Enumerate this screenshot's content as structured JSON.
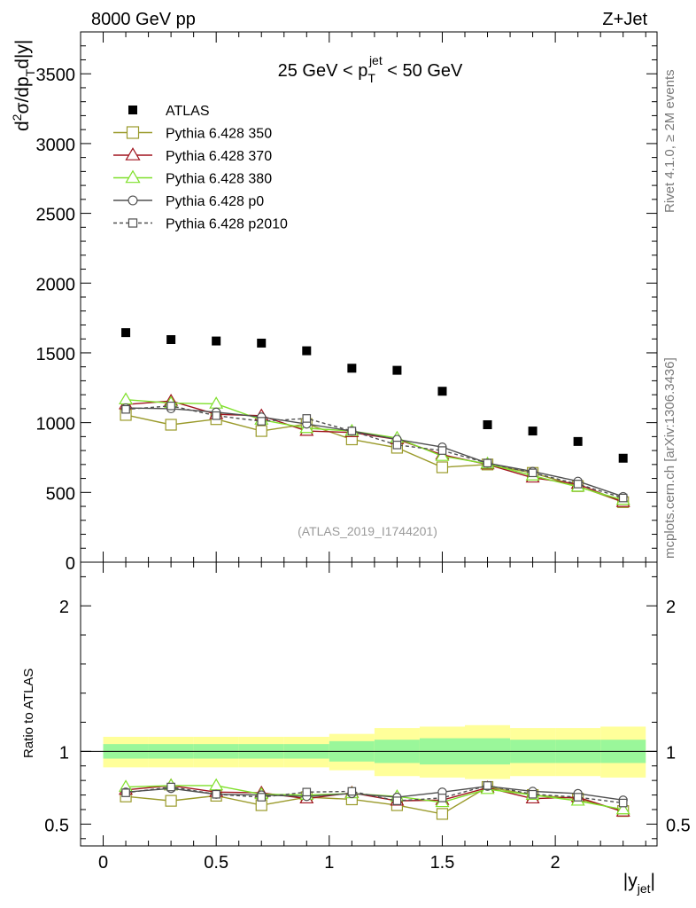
{
  "header": {
    "left": "8000 GeV pp",
    "right": "Z+Jet"
  },
  "side_labels": {
    "rivet": "Rivet 4.1.0, ≥ 2M events",
    "mcplots": "mcplots.cern.ch [arXiv:1306.3436]"
  },
  "chart_data": [
    {
      "panel": "main",
      "type": "scatter",
      "title_parts": {
        "prefix": "25 GeV < p",
        "sub": "T",
        "sup": "jet",
        "suffix": " < 50 GeV"
      },
      "ylabel": "d²σ/dp_T d|y|",
      "ylabel_parts": {
        "d": "d",
        "two": "2",
        "rest": "σ/dp",
        "sub": "T",
        "end": "d|y|"
      },
      "xlabel_parts": {
        "main": "|y",
        "sub": "jet",
        "end": "|"
      },
      "watermark": "(ATLAS_2019_I1744201)",
      "xlim": [
        -0.1,
        2.45
      ],
      "ylim": [
        0,
        3800
      ],
      "x_ticks": [
        "0",
        "0.5",
        "1",
        "1.5",
        "2"
      ],
      "y_ticks": [
        "0",
        "500",
        "1000",
        "1500",
        "2000",
        "2500",
        "3000",
        "3500"
      ],
      "x": [
        0.1,
        0.3,
        0.5,
        0.7,
        0.9,
        1.1,
        1.3,
        1.5,
        1.7,
        1.9,
        2.1,
        2.3
      ],
      "series": [
        {
          "name": "ATLAS",
          "color": "#000000",
          "marker": "filled-square",
          "line": "none",
          "values": [
            1645,
            1595,
            1585,
            1570,
            1515,
            1390,
            1375,
            1225,
            985,
            940,
            865,
            745
          ]
        },
        {
          "name": "Pythia 6.428 350",
          "color": "#9a9a2a",
          "marker": "open-square",
          "line": "solid",
          "values": [
            1055,
            985,
            1025,
            940,
            990,
            880,
            820,
            680,
            700,
            640,
            545,
            430
          ]
        },
        {
          "name": "Pythia 6.428 370",
          "color": "#a0141e",
          "marker": "open-triangle",
          "line": "solid",
          "values": [
            1130,
            1155,
            1060,
            1050,
            940,
            930,
            880,
            770,
            700,
            605,
            560,
            430
          ]
        },
        {
          "name": "Pythia 6.428 380",
          "color": "#7fe02a",
          "marker": "open-triangle",
          "line": "solid",
          "values": [
            1165,
            1140,
            1135,
            1020,
            960,
            940,
            890,
            760,
            705,
            620,
            540,
            445
          ]
        },
        {
          "name": "Pythia 6.428 p0",
          "color": "#505050",
          "marker": "open-circle",
          "line": "solid",
          "values": [
            1105,
            1100,
            1075,
            1040,
            990,
            940,
            880,
            825,
            710,
            650,
            580,
            470
          ]
        },
        {
          "name": "Pythia 6.428 p2010",
          "color": "#505050",
          "marker": "open-square",
          "line": "dashed",
          "values": [
            1095,
            1120,
            1050,
            1010,
            1030,
            940,
            840,
            800,
            710,
            640,
            560,
            460
          ]
        }
      ]
    },
    {
      "panel": "ratio",
      "type": "line",
      "ylabel": "Ratio to ATLAS",
      "xlim": [
        -0.1,
        2.45
      ],
      "ylim": [
        0.35,
        2.3
      ],
      "y_ticks": [
        "0.5",
        "1",
        "2"
      ],
      "band_edges": [
        0.0,
        0.2,
        0.4,
        0.6,
        0.8,
        1.0,
        1.2,
        1.4,
        1.6,
        1.8,
        2.0,
        2.2,
        2.4
      ],
      "band_inner": [
        [
          0.95,
          1.05
        ],
        [
          0.95,
          1.05
        ],
        [
          0.95,
          1.05
        ],
        [
          0.95,
          1.05
        ],
        [
          0.95,
          1.05
        ],
        [
          0.93,
          1.07
        ],
        [
          0.92,
          1.08
        ],
        [
          0.91,
          1.09
        ],
        [
          0.91,
          1.09
        ],
        [
          0.92,
          1.08
        ],
        [
          0.92,
          1.08
        ],
        [
          0.92,
          1.08
        ]
      ],
      "band_outer": [
        [
          0.89,
          1.1
        ],
        [
          0.89,
          1.1
        ],
        [
          0.89,
          1.1
        ],
        [
          0.89,
          1.1
        ],
        [
          0.89,
          1.1
        ],
        [
          0.87,
          1.12
        ],
        [
          0.83,
          1.16
        ],
        [
          0.82,
          1.17
        ],
        [
          0.81,
          1.18
        ],
        [
          0.83,
          1.16
        ],
        [
          0.83,
          1.16
        ],
        [
          0.82,
          1.17
        ]
      ],
      "series": [
        {
          "name": "Pythia 6.428 350",
          "values": [
            0.69,
            0.66,
            0.695,
            0.63,
            0.685,
            0.67,
            0.63,
            0.57,
            0.755,
            0.7,
            0.675,
            0.59
          ]
        },
        {
          "name": "Pythia 6.428 370",
          "values": [
            0.735,
            0.765,
            0.72,
            0.715,
            0.675,
            0.715,
            0.66,
            0.665,
            0.75,
            0.675,
            0.685,
            0.585
          ]
        },
        {
          "name": "Pythia 6.428 380",
          "values": [
            0.755,
            0.765,
            0.765,
            0.705,
            0.7,
            0.71,
            0.69,
            0.65,
            0.74,
            0.7,
            0.66,
            0.6
          ]
        },
        {
          "name": "Pythia 6.428 p0",
          "values": [
            0.72,
            0.745,
            0.705,
            0.7,
            0.69,
            0.71,
            0.685,
            0.72,
            0.76,
            0.725,
            0.71,
            0.665
          ]
        },
        {
          "name": "Pythia 6.428 p2010",
          "values": [
            0.715,
            0.755,
            0.705,
            0.685,
            0.72,
            0.725,
            0.66,
            0.68,
            0.765,
            0.705,
            0.685,
            0.645
          ]
        }
      ]
    }
  ]
}
